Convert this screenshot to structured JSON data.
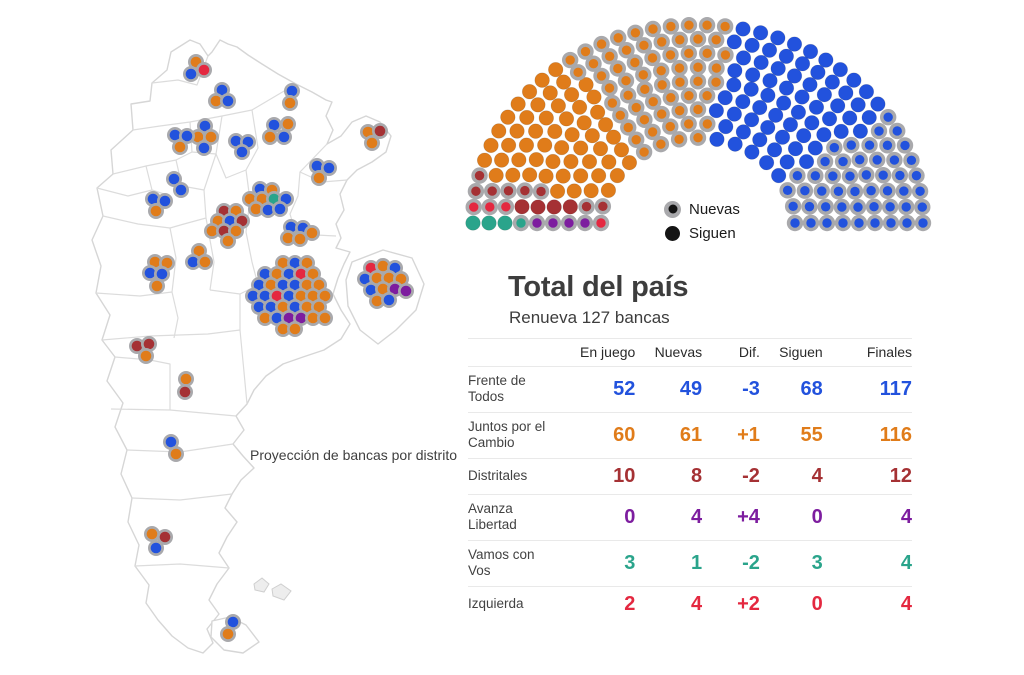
{
  "summary": {
    "title": "Total del país",
    "subtitle": "Renueva 127 bancas"
  },
  "legend": {
    "nuevas": "Nuevas",
    "siguen": "Siguen"
  },
  "map": {
    "caption": "Proyección de bancas por distrito",
    "ring_color": "#a9a9ac",
    "border_color": "#dadada",
    "districts": [
      {
        "name": "jujuy",
        "dots": [
          [
            196,
            62,
            "jxc"
          ],
          [
            191,
            74,
            "fdt"
          ],
          [
            204,
            70,
            "izq"
          ]
        ]
      },
      {
        "name": "salta",
        "dots": [
          [
            222,
            90,
            "fdt"
          ],
          [
            216,
            101,
            "jxc"
          ],
          [
            228,
            101,
            "fdt"
          ]
        ]
      },
      {
        "name": "formosa",
        "dots": [
          [
            292,
            91,
            "fdt"
          ],
          [
            290,
            103,
            "jxc"
          ]
        ]
      },
      {
        "name": "tucuman",
        "dots": [
          [
            205,
            126,
            "fdt"
          ],
          [
            198,
            137,
            "jxc"
          ],
          [
            211,
            137,
            "jxc"
          ],
          [
            204,
            148,
            "fdt"
          ]
        ]
      },
      {
        "name": "catamarca",
        "dots": [
          [
            175,
            135,
            "fdt"
          ],
          [
            187,
            136,
            "fdt"
          ],
          [
            180,
            147,
            "jxc"
          ]
        ]
      },
      {
        "name": "santiago-del-estero",
        "dots": [
          [
            236,
            141,
            "fdt"
          ],
          [
            248,
            142,
            "fdt"
          ],
          [
            242,
            152,
            "fdt"
          ]
        ]
      },
      {
        "name": "chaco",
        "dots": [
          [
            274,
            125,
            "fdt"
          ],
          [
            288,
            124,
            "jxc"
          ],
          [
            270,
            137,
            "jxc"
          ],
          [
            284,
            137,
            "fdt"
          ]
        ]
      },
      {
        "name": "misiones",
        "dots": [
          [
            368,
            132,
            "jxc"
          ],
          [
            380,
            131,
            "dist"
          ],
          [
            372,
            143,
            "jxc"
          ]
        ]
      },
      {
        "name": "corrientes",
        "dots": [
          [
            317,
            166,
            "fdt"
          ],
          [
            329,
            168,
            "fdt"
          ],
          [
            319,
            178,
            "jxc"
          ]
        ]
      },
      {
        "name": "la-rioja",
        "dots": [
          [
            174,
            179,
            "fdt"
          ],
          [
            181,
            190,
            "fdt"
          ]
        ]
      },
      {
        "name": "san-juan",
        "dots": [
          [
            153,
            199,
            "fdt"
          ],
          [
            165,
            201,
            "fdt"
          ],
          [
            156,
            211,
            "jxc"
          ]
        ]
      },
      {
        "name": "santa-fe",
        "dots": [
          [
            260,
            189,
            "fdt"
          ],
          [
            272,
            190,
            "jxc"
          ],
          [
            250,
            199,
            "jxc"
          ],
          [
            262,
            199,
            "jxc"
          ],
          [
            274,
            199,
            "vcv"
          ],
          [
            286,
            199,
            "fdt"
          ],
          [
            256,
            209,
            "jxc"
          ],
          [
            268,
            210,
            "fdt"
          ],
          [
            280,
            209,
            "fdt"
          ]
        ]
      },
      {
        "name": "entre-rios",
        "dots": [
          [
            291,
            227,
            "fdt"
          ],
          [
            303,
            228,
            "fdt"
          ],
          [
            288,
            238,
            "jxc"
          ],
          [
            300,
            239,
            "jxc"
          ],
          [
            312,
            233,
            "jxc"
          ]
        ]
      },
      {
        "name": "cordoba",
        "dots": [
          [
            224,
            211,
            "dist"
          ],
          [
            236,
            211,
            "jxc"
          ],
          [
            218,
            221,
            "jxc"
          ],
          [
            230,
            221,
            "fdt"
          ],
          [
            242,
            221,
            "dist"
          ],
          [
            212,
            231,
            "jxc"
          ],
          [
            224,
            231,
            "dist"
          ],
          [
            236,
            231,
            "jxc"
          ],
          [
            228,
            241,
            "jxc"
          ]
        ]
      },
      {
        "name": "san-luis",
        "dots": [
          [
            199,
            251,
            "jxc"
          ],
          [
            193,
            262,
            "fdt"
          ],
          [
            205,
            262,
            "jxc"
          ]
        ]
      },
      {
        "name": "mendoza",
        "dots": [
          [
            155,
            262,
            "jxc"
          ],
          [
            167,
            263,
            "jxc"
          ],
          [
            150,
            273,
            "fdt"
          ],
          [
            162,
            274,
            "fdt"
          ],
          [
            157,
            286,
            "jxc"
          ]
        ]
      },
      {
        "name": "buenos-aires",
        "dots": [
          [
            283,
            263,
            "jxc"
          ],
          [
            295,
            263,
            "fdt"
          ],
          [
            307,
            263,
            "jxc"
          ],
          [
            265,
            274,
            "fdt"
          ],
          [
            277,
            274,
            "jxc"
          ],
          [
            289,
            274,
            "fdt"
          ],
          [
            301,
            274,
            "izq"
          ],
          [
            313,
            274,
            "jxc"
          ],
          [
            259,
            285,
            "fdt"
          ],
          [
            271,
            285,
            "jxc"
          ],
          [
            283,
            285,
            "fdt"
          ],
          [
            295,
            285,
            "fdt"
          ],
          [
            307,
            285,
            "jxc"
          ],
          [
            319,
            285,
            "jxc"
          ],
          [
            253,
            296,
            "fdt"
          ],
          [
            265,
            296,
            "fdt"
          ],
          [
            277,
            296,
            "izq"
          ],
          [
            289,
            296,
            "fdt"
          ],
          [
            301,
            296,
            "jxc"
          ],
          [
            313,
            296,
            "jxc"
          ],
          [
            325,
            296,
            "jxc"
          ],
          [
            259,
            307,
            "fdt"
          ],
          [
            271,
            307,
            "fdt"
          ],
          [
            283,
            307,
            "jxc"
          ],
          [
            295,
            307,
            "fdt"
          ],
          [
            307,
            307,
            "jxc"
          ],
          [
            319,
            307,
            "jxc"
          ],
          [
            265,
            318,
            "jxc"
          ],
          [
            277,
            318,
            "fdt"
          ],
          [
            289,
            318,
            "al"
          ],
          [
            301,
            318,
            "al"
          ],
          [
            313,
            318,
            "jxc"
          ],
          [
            325,
            318,
            "jxc"
          ],
          [
            283,
            329,
            "jxc"
          ],
          [
            295,
            329,
            "jxc"
          ]
        ]
      },
      {
        "name": "caba",
        "dots": [
          [
            371,
            268,
            "izq"
          ],
          [
            383,
            266,
            "jxc"
          ],
          [
            395,
            268,
            "fdt"
          ],
          [
            365,
            279,
            "fdt"
          ],
          [
            377,
            278,
            "jxc"
          ],
          [
            389,
            278,
            "jxc"
          ],
          [
            401,
            279,
            "jxc"
          ],
          [
            371,
            290,
            "fdt"
          ],
          [
            383,
            289,
            "jxc"
          ],
          [
            395,
            289,
            "al"
          ],
          [
            406,
            291,
            "al"
          ],
          [
            377,
            301,
            "jxc"
          ],
          [
            389,
            300,
            "fdt"
          ]
        ]
      },
      {
        "name": "neuquen",
        "dots": [
          [
            137,
            346,
            "dist"
          ],
          [
            149,
            344,
            "dist"
          ],
          [
            146,
            356,
            "jxc"
          ]
        ]
      },
      {
        "name": "la-pampa",
        "dots": [
          [
            186,
            379,
            "jxc"
          ],
          [
            185,
            392,
            "dist"
          ]
        ]
      },
      {
        "name": "rio-negro",
        "dots": [
          [
            171,
            442,
            "fdt"
          ],
          [
            176,
            454,
            "jxc"
          ]
        ]
      },
      {
        "name": "chubut",
        "dots": [
          [
            152,
            534,
            "jxc"
          ],
          [
            165,
            537,
            "dist"
          ],
          [
            156,
            548,
            "fdt"
          ]
        ]
      },
      {
        "name": "tierra-del-fuego",
        "dots": [
          [
            233,
            622,
            "fdt"
          ],
          [
            228,
            634,
            "jxc"
          ]
        ]
      }
    ]
  },
  "parties": {
    "fdt": {
      "label": "Frente de Todos",
      "color": "#2252dd"
    },
    "jxc": {
      "label": "Juntos por el Cambio",
      "color": "#e07c1a"
    },
    "dist": {
      "label": "Distritales",
      "color": "#a53134"
    },
    "al": {
      "label": "Avanza Libertad",
      "color": "#7d1d9f"
    },
    "vcv": {
      "label": "Vamos con Vos",
      "color": "#2aa48b"
    },
    "izq": {
      "label": "Izquierda",
      "color": "#e42840"
    }
  },
  "hemicycle": {
    "total_seats": 257,
    "ring_color": "#a9a9ac",
    "fill_order": [
      {
        "party": "vcv",
        "siguen": 3,
        "nuevas": 1
      },
      {
        "party": "al",
        "siguen": 0,
        "nuevas": 4
      },
      {
        "party": "izq",
        "siguen": 0,
        "nuevas": 4
      },
      {
        "party": "dist",
        "siguen": 4,
        "nuevas": 8
      },
      {
        "party": "jxc",
        "siguen": 55,
        "nuevas": 61
      },
      {
        "party": "fdt",
        "siguen": 68,
        "nuevas": 49
      }
    ]
  },
  "table": {
    "columns": [
      "En juego",
      "Nuevas",
      "Dif.",
      "Siguen",
      "Finales"
    ],
    "rows": [
      {
        "party": "fdt",
        "label": "Frente de Todos",
        "values": [
          "52",
          "49",
          "-3",
          "68",
          "117"
        ]
      },
      {
        "party": "jxc",
        "label": "Juntos por el Cambio",
        "values": [
          "60",
          "61",
          "+1",
          "55",
          "116"
        ]
      },
      {
        "party": "dist",
        "label": "Distritales",
        "values": [
          "10",
          "8",
          "-2",
          "4",
          "12"
        ]
      },
      {
        "party": "al",
        "label": "Avanza Libertad",
        "values": [
          "0",
          "4",
          "+4",
          "0",
          "4"
        ]
      },
      {
        "party": "vcv",
        "label": "Vamos con Vos",
        "values": [
          "3",
          "1",
          "-2",
          "3",
          "4"
        ]
      },
      {
        "party": "izq",
        "label": "Izquierda",
        "values": [
          "2",
          "4",
          "+2",
          "0",
          "4"
        ]
      }
    ]
  },
  "chart_data": [
    {
      "type": "table",
      "title": "Total del país",
      "subtitle": "Renueva 127 bancas",
      "columns": [
        "En juego",
        "Nuevas",
        "Dif.",
        "Siguen",
        "Finales"
      ],
      "rows": [
        [
          "Frente de Todos",
          52,
          49,
          -3,
          68,
          117
        ],
        [
          "Juntos por el Cambio",
          60,
          61,
          1,
          55,
          116
        ],
        [
          "Distritales",
          10,
          8,
          -2,
          4,
          12
        ],
        [
          "Avanza Libertad",
          0,
          4,
          4,
          0,
          4
        ],
        [
          "Vamos con Vos",
          3,
          1,
          -2,
          3,
          4
        ],
        [
          "Izquierda",
          2,
          4,
          2,
          0,
          4
        ]
      ]
    },
    {
      "type": "parliament-hemicycle",
      "total_seats": 257,
      "legend": [
        "Nuevas (anillo gris)",
        "Siguen (punto sólido)"
      ],
      "series": [
        {
          "name": "Vamos con Vos",
          "siguen": 3,
          "nuevas": 1,
          "total": 4,
          "color": "#2aa48b"
        },
        {
          "name": "Avanza Libertad",
          "siguen": 0,
          "nuevas": 4,
          "total": 4,
          "color": "#7d1d9f"
        },
        {
          "name": "Izquierda",
          "siguen": 0,
          "nuevas": 4,
          "total": 4,
          "color": "#e42840"
        },
        {
          "name": "Distritales",
          "siguen": 4,
          "nuevas": 8,
          "total": 12,
          "color": "#a53134"
        },
        {
          "name": "Juntos por el Cambio",
          "siguen": 55,
          "nuevas": 61,
          "total": 116,
          "color": "#e07c1a"
        },
        {
          "name": "Frente de Todos",
          "siguen": 68,
          "nuevas": 49,
          "total": 117,
          "color": "#2252dd"
        }
      ]
    }
  ]
}
